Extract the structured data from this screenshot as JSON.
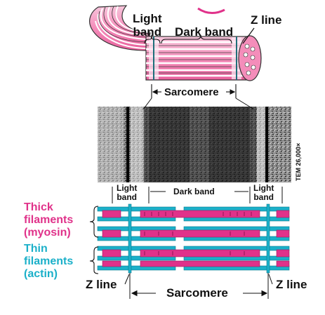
{
  "top_fiber": {
    "light_band": "Light\nband",
    "dark_band": "Dark band",
    "z_line": "Z line",
    "sarcomere": "Sarcomere"
  },
  "micrograph": {
    "magnification": "TEM 26,000×"
  },
  "filament_diagram": {
    "light_band_left": "Light\nband",
    "dark_band": "Dark band",
    "light_band_right": "Light\nband",
    "thick_filaments": "Thick\nfilaments\n(myosin)",
    "thin_filaments": "Thin\nfilaments\n(actin)",
    "z_line_left": "Z line",
    "z_line_right": "Z line",
    "sarcomere": "Sarcomere"
  },
  "colors": {
    "thick": "#e0328a",
    "thin": "#1bb0c9",
    "fiber_pink": "#f06aa8",
    "fiber_white": "#ffffff"
  }
}
